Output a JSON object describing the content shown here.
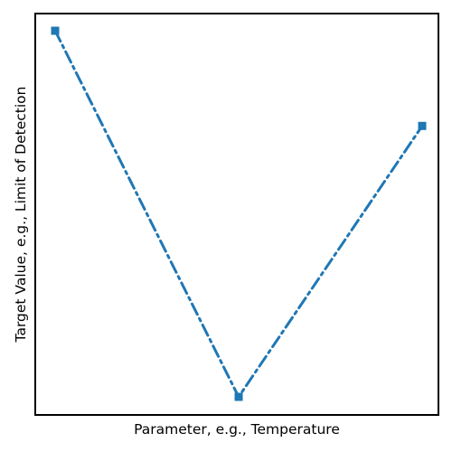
{
  "chart_data": {
    "type": "line",
    "title": "",
    "xlabel": "Parameter, e.g., Temperature",
    "ylabel": "Target Value, e.g., Limit of Detection",
    "x_ticks_visible": false,
    "y_ticks_visible": false,
    "grid": false,
    "legend": "none",
    "style": "xkcd hand-drawn",
    "series": [
      {
        "color": "#1f77b4",
        "line_style": "dash-dot",
        "marker": "square",
        "points": [
          {
            "x": 0,
            "y": 1.0
          },
          {
            "x": 0.5,
            "y": 0.0
          },
          {
            "x": 1.0,
            "y": 0.74
          }
        ]
      }
    ]
  }
}
